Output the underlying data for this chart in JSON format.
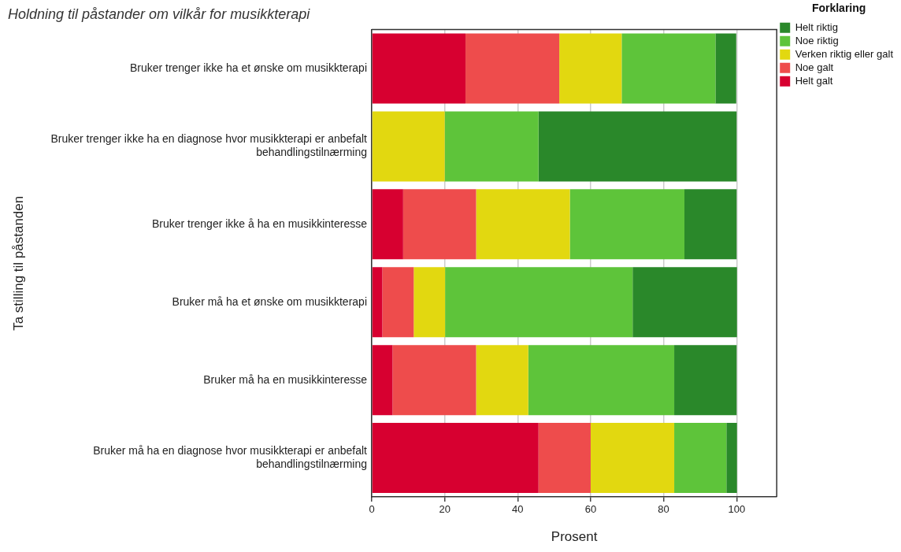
{
  "chart_data": {
    "type": "bar",
    "orientation": "horizontal",
    "stacked": true,
    "title": "Holdning til påstander om vilkår for musikkterapi",
    "xlabel": "Prosent",
    "ylabel": "Ta stilling til påstanden",
    "legend_title": "Forklaring",
    "categories": [
      "Bruker trenger ikke ha et ønske om musikkterapi",
      "Bruker trenger ikke ha en diagnose hvor musikkterapi er anbefalt behandlingstilnærming",
      "Bruker trenger ikke å ha en musikkinteresse",
      "Bruker må ha et ønske om musikkterapi",
      "Bruker må ha en musikkinteresse",
      "Bruker må ha en diagnose hvor musikkterapi er anbefalt behandlingstilnærming"
    ],
    "series": [
      {
        "name": "Helt galt",
        "color": "#d70030",
        "values": [
          25.7,
          0,
          8.6,
          2.9,
          5.7,
          45.7
        ]
      },
      {
        "name": "Noe galt",
        "color": "#ee4c4c",
        "values": [
          25.7,
          0,
          20,
          8.6,
          22.9,
          14.3
        ]
      },
      {
        "name": "Verken riktig eller galt",
        "color": "#e2d810",
        "values": [
          17.1,
          20,
          25.7,
          8.6,
          14.3,
          22.9
        ]
      },
      {
        "name": "Noe riktig",
        "color": "#5ec43a",
        "values": [
          25.7,
          25.7,
          31.4,
          51.4,
          40,
          14.3
        ]
      },
      {
        "name": "Helt riktig",
        "color": "#2a882a",
        "values": [
          5.7,
          54.3,
          14.3,
          28.6,
          17.1,
          2.9
        ]
      }
    ],
    "xlim": [
      0,
      111
    ],
    "xticks": [
      0,
      20,
      40,
      60,
      80,
      100
    ],
    "grid": "x",
    "legend": "top right"
  }
}
